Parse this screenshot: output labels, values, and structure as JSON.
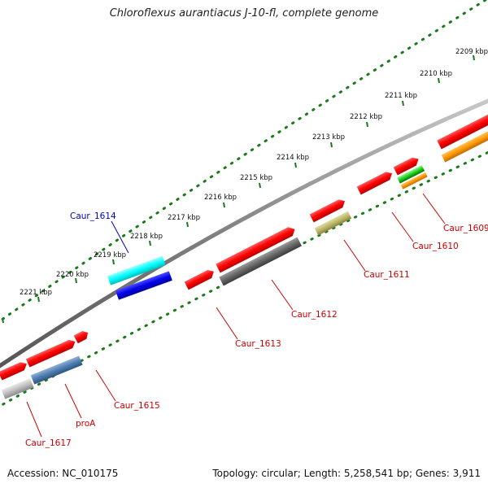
{
  "title": "Chloroflexus aurantiacus J-10-fl, complete genome",
  "accession": "Accession: NC_010175",
  "summary": "Topology: circular; Length: 5,258,541 bp; Genes: 3,911",
  "colors": {
    "gene_default": "#ff0000",
    "highlight_label": "#0000cc",
    "gene_label": "#cc0000",
    "backbone": "#808080",
    "ruler_dots": "#1a7a1a"
  },
  "ruler_labels": [
    {
      "text": "2209 kbp",
      "kbp": 2209
    },
    {
      "text": "2210 kbp",
      "kbp": 2210
    },
    {
      "text": "2211 kbp",
      "kbp": 2211
    },
    {
      "text": "2212 kbp",
      "kbp": 2212
    },
    {
      "text": "2213 kbp",
      "kbp": 2213
    },
    {
      "text": "2214 kbp",
      "kbp": 2214
    },
    {
      "text": "2215 kbp",
      "kbp": 2215
    },
    {
      "text": "2216 kbp",
      "kbp": 2216
    },
    {
      "text": "2217 kbp",
      "kbp": 2217
    },
    {
      "text": "2218 kbp",
      "kbp": 2218
    },
    {
      "text": "2219 kbp",
      "kbp": 2219
    },
    {
      "text": "2220 kbp",
      "kbp": 2220
    },
    {
      "text": "2221 kbp",
      "kbp": 2221
    }
  ],
  "gene_labels": [
    {
      "text": "Caur_1609",
      "highlight": false
    },
    {
      "text": "Caur_1610",
      "highlight": false
    },
    {
      "text": "Caur_1611",
      "highlight": false
    },
    {
      "text": "Caur_1612",
      "highlight": false
    },
    {
      "text": "Caur_1613",
      "highlight": false
    },
    {
      "text": "Caur_1614",
      "highlight": true
    },
    {
      "text": "Caur_1615",
      "highlight": false
    },
    {
      "text": "proA",
      "highlight": false
    },
    {
      "text": "Caur_1617",
      "highlight": false
    }
  ]
}
